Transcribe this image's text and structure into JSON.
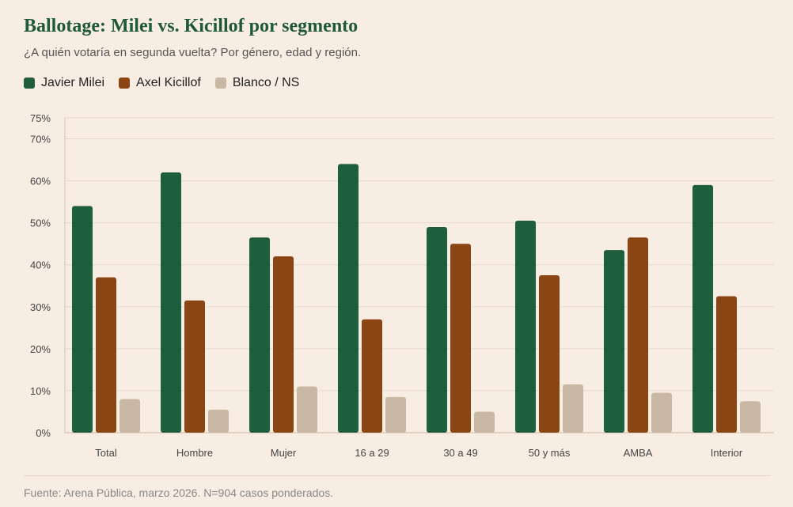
{
  "chart_data": {
    "type": "bar",
    "title": "Ballotage: Milei vs. Kicillof por segmento",
    "subtitle": "¿A quién votaría en segunda vuelta? Por género, edad y región.",
    "categories": [
      "Total",
      "Hombre",
      "Mujer",
      "16 a 29",
      "30 a 49",
      "50 y más",
      "AMBA",
      "Interior"
    ],
    "series": [
      {
        "name": "Javier Milei",
        "color": "#1e5e3c",
        "values": [
          54,
          62,
          46.5,
          64,
          49,
          50.5,
          43.5,
          59
        ]
      },
      {
        "name": "Axel Kicillof",
        "color": "#8b4513",
        "values": [
          37,
          31.5,
          42,
          27,
          45,
          37.5,
          46.5,
          32.5
        ]
      },
      {
        "name": "Blanco / NS",
        "color": "#c9b8a4",
        "values": [
          8,
          5.5,
          11,
          8.5,
          5,
          11.5,
          9.5,
          7.5
        ]
      }
    ],
    "yticks": [
      "0%",
      "10%",
      "20%",
      "30%",
      "40%",
      "50%",
      "60%",
      "70%",
      "75%"
    ],
    "ytick_values": [
      0,
      10,
      20,
      30,
      40,
      50,
      60,
      70,
      75
    ],
    "ylim": [
      0,
      75
    ],
    "xlabel": "",
    "ylabel": "",
    "grid": true,
    "legend_position": "top-left"
  },
  "source": "Fuente: Arena Pública, marzo 2026. N=904 casos ponderados."
}
